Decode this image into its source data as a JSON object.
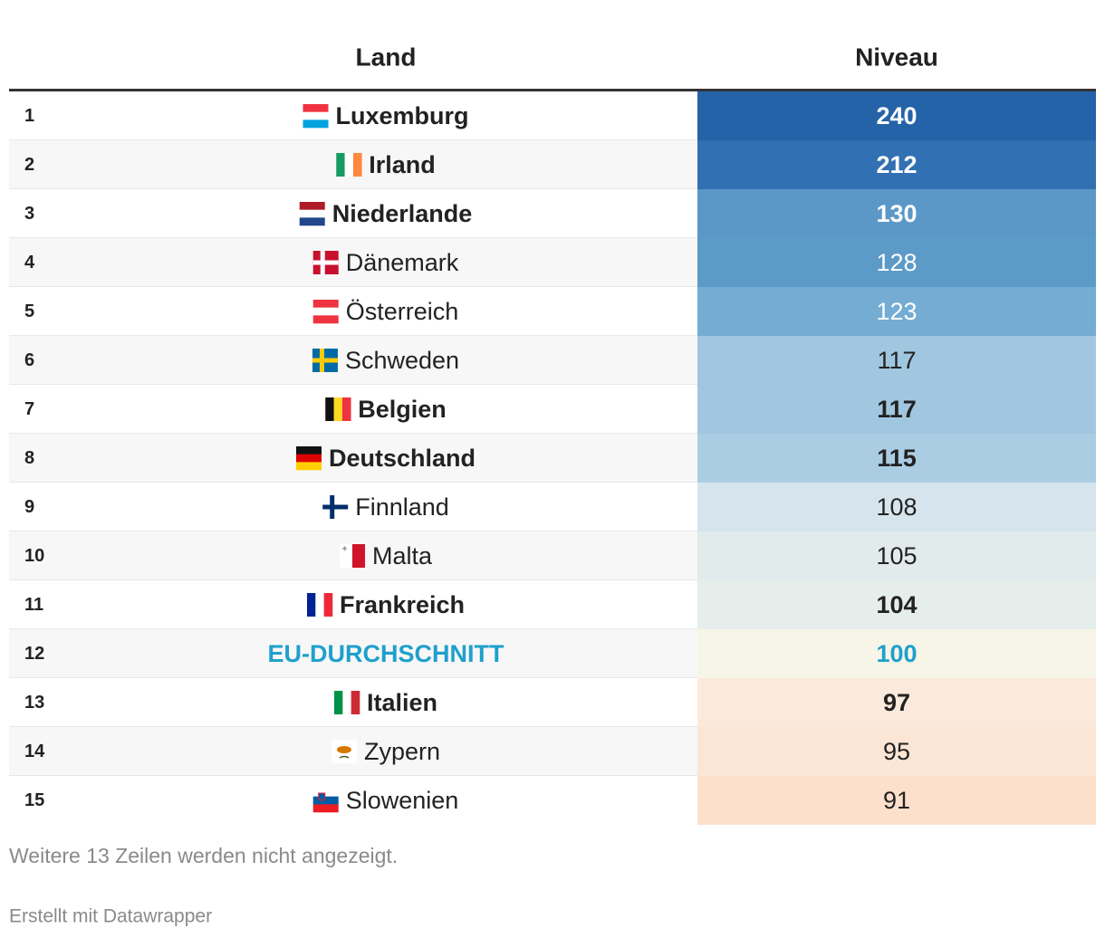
{
  "table": {
    "header": {
      "land": "Land",
      "niveau": "Niveau"
    },
    "rows": [
      {
        "rank": "1",
        "land": "Luxemburg",
        "niveau": "240",
        "bold": true,
        "fill": "#2563a8",
        "value_color": "#ffffff"
      },
      {
        "rank": "2",
        "land": "Irland",
        "niveau": "212",
        "bold": true,
        "fill": "#3170b2",
        "value_color": "#ffffff"
      },
      {
        "rank": "3",
        "land": "Niederlande",
        "niveau": "130",
        "bold": true,
        "fill": "#5b98c7",
        "value_color": "#ffffff"
      },
      {
        "rank": "4",
        "land": "Dänemark",
        "niveau": "128",
        "bold": false,
        "fill": "#5c9ac8",
        "value_color": "#ffffff"
      },
      {
        "rank": "5",
        "land": "Österreich",
        "niveau": "123",
        "bold": false,
        "fill": "#74acd3",
        "value_color": "#ffffff"
      },
      {
        "rank": "6",
        "land": "Schweden",
        "niveau": "117",
        "bold": false,
        "fill": "#a1c7e0",
        "value_color": "#222222"
      },
      {
        "rank": "7",
        "land": "Belgien",
        "niveau": "117",
        "bold": true,
        "fill": "#a1c7e0",
        "value_color": "#222222"
      },
      {
        "rank": "8",
        "land": "Deutschland",
        "niveau": "115",
        "bold": true,
        "fill": "#aacde3",
        "value_color": "#222222"
      },
      {
        "rank": "9",
        "land": "Finnland",
        "niveau": "108",
        "bold": false,
        "fill": "#d6e5ed",
        "value_color": "#222222"
      },
      {
        "rank": "10",
        "land": "Malta",
        "niveau": "105",
        "bold": false,
        "fill": "#e2ebec",
        "value_color": "#222222"
      },
      {
        "rank": "11",
        "land": "Frankreich",
        "niveau": "104",
        "bold": true,
        "fill": "#e6eeec",
        "value_color": "#222222"
      },
      {
        "rank": "12",
        "land": "EU-DURCHSCHNITT",
        "niveau": "100",
        "bold": true,
        "fill": "#f6f5e8",
        "value_color": "#1fa0cc",
        "land_color": "#1fa0cc"
      },
      {
        "rank": "13",
        "land": "Italien",
        "niveau": "97",
        "bold": true,
        "fill": "#fbeadb",
        "value_color": "#222222"
      },
      {
        "rank": "14",
        "land": "Zypern",
        "niveau": "95",
        "bold": false,
        "fill": "#fbe6d5",
        "value_color": "#222222"
      },
      {
        "rank": "15",
        "land": "Slowenien",
        "niveau": "91",
        "bold": false,
        "fill": "#fde0cb",
        "value_color": "#222222"
      }
    ]
  },
  "notes": {
    "hidden": "Weitere 13 Zeilen werden nicht angezeigt.",
    "credit": "Erstellt mit Datawrapper"
  }
}
